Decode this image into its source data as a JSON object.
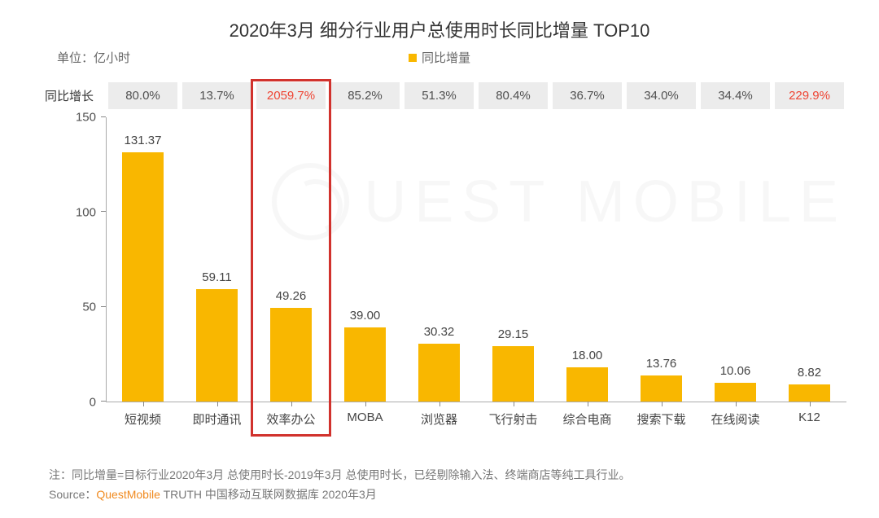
{
  "title": "2020年3月 细分行业用户总使用时长同比增量 TOP10",
  "unit_label": "单位：亿小时",
  "legend_label": "同比增量",
  "growth_row_label": "同比增长",
  "chart": {
    "type": "bar",
    "ylim": [
      0,
      150
    ],
    "yticks": [
      0,
      50,
      100,
      150
    ],
    "bar_color": "#f9b700",
    "bar_width_pct": 56,
    "axis_color": "#aaaaaa",
    "growth_cell_bg": "#ececec",
    "growth_text_color": "#505050",
    "highlight_text_color": "#ee4433",
    "highlight_border_color": "#d1322d",
    "background_color": "#ffffff",
    "title_fontsize": 22,
    "label_fontsize": 15,
    "value_fontsize": 15
  },
  "series": [
    {
      "category": "短视频",
      "value": 131.37,
      "value_label": "131.37",
      "growth": "80.0%",
      "highlight": false
    },
    {
      "category": "即时通讯",
      "value": 59.11,
      "value_label": "59.11",
      "growth": "13.7%",
      "highlight": false
    },
    {
      "category": "效率办公",
      "value": 49.26,
      "value_label": "49.26",
      "growth": "2059.7%",
      "highlight": true
    },
    {
      "category": "MOBA",
      "value": 39.0,
      "value_label": "39.00",
      "growth": "85.2%",
      "highlight": false
    },
    {
      "category": "浏览器",
      "value": 30.32,
      "value_label": "30.32",
      "growth": "51.3%",
      "highlight": false
    },
    {
      "category": "飞行射击",
      "value": 29.15,
      "value_label": "29.15",
      "growth": "80.4%",
      "highlight": false
    },
    {
      "category": "综合电商",
      "value": 18.0,
      "value_label": "18.00",
      "growth": "36.7%",
      "highlight": false
    },
    {
      "category": "搜索下载",
      "value": 13.76,
      "value_label": "13.76",
      "growth": "34.0%",
      "highlight": false
    },
    {
      "category": "在线阅读",
      "value": 10.06,
      "value_label": "10.06",
      "growth": "34.4%",
      "highlight": false
    },
    {
      "category": "K12",
      "value": 8.82,
      "value_label": "8.82",
      "growth": "229.9%",
      "highlight": true
    }
  ],
  "highlight_box_index": 2,
  "footer": {
    "note_prefix": "注：",
    "note_text": "同比增量=目标行业2020年3月 总使用时长-2019年3月 总使用时长，已经剔除输入法、终端商店等纯工具行业。",
    "source_prefix": "Source：",
    "source_brand": "QuestMobile",
    "source_rest": " TRUTH 中国移动互联网数据库 2020年3月"
  },
  "watermark_text": "UEST MOBILE"
}
